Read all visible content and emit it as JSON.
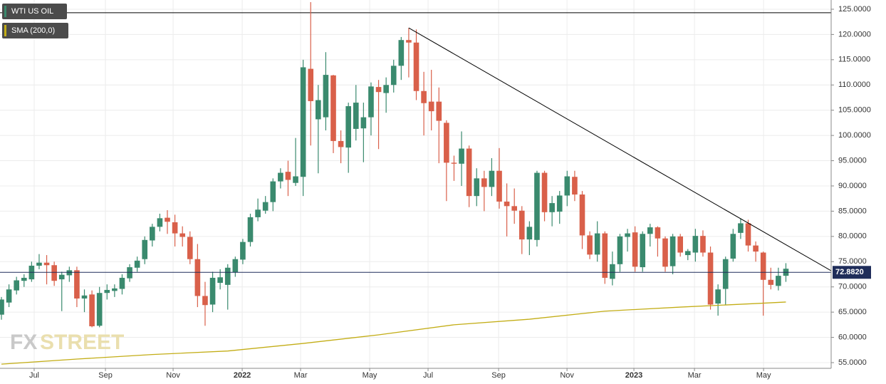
{
  "chart_data": {
    "type": "candlestick",
    "series": [
      {
        "name": "WTI US OIL",
        "type": "candlestick",
        "up_color": "#3a8a6e",
        "down_color": "#d9604a",
        "open": [
          64.5,
          66.9,
          69.3,
          71.2,
          71.5,
          74.2,
          74.8,
          74.3,
          71.5,
          72.3,
          73.3,
          67.7,
          68.5,
          62.3,
          68.8,
          69.2,
          69.6,
          71.7,
          73.8,
          75.5,
          79.2,
          81.9,
          83.7,
          82.8,
          80.6,
          79.9,
          75.5,
          68.2,
          66.5,
          70.8,
          70.4,
          72.9,
          75.4,
          78.9,
          83.8,
          85.1,
          86.8,
          90.9,
          92.8,
          90.6,
          91.8,
          113.2,
          103.2,
          103.6,
          111.9,
          98.9,
          97.6,
          101.3,
          101.4,
          103.6,
          109.6,
          108.4,
          110,
          113.8,
          118.9,
          118.4,
          108.8,
          106.7,
          106.7,
          102.5,
          94.6,
          94.4,
          97.4,
          88,
          91.5,
          89.8,
          93,
          86.9,
          86,
          85.1,
          79.4,
          79.3,
          92.6,
          84.8,
          84.9,
          88.1,
          91.8,
          88.3,
          80.2,
          76.4,
          80.6,
          71.6,
          74.5,
          79.9,
          80.8,
          73.9,
          80.5,
          81.8,
          79.6,
          74.1,
          80,
          76.3,
          76.8,
          80.1,
          76.8,
          66.7,
          69.6,
          75.6,
          80.7,
          82.6,
          78.2,
          76.8,
          71.4,
          70.2,
          72.2
        ],
        "high": [
          68,
          70.5,
          72,
          72.5,
          75,
          76.5,
          76.3,
          75,
          73,
          74,
          74,
          69.5,
          69.3,
          70,
          70.5,
          70.5,
          72.5,
          74.5,
          76,
          80,
          82.5,
          84.5,
          85.2,
          84.3,
          82,
          81,
          78.5,
          71,
          73,
          73.5,
          74.5,
          76,
          79.5,
          84.5,
          87.5,
          88,
          91.5,
          93.5,
          95,
          99.5,
          115,
          126.4,
          110,
          116.5,
          112,
          101,
          106.5,
          110,
          106.5,
          110.5,
          111,
          111.5,
          115,
          119.5,
          121.3,
          121,
          112.6,
          113,
          109.5,
          103,
          96,
          100.8,
          98,
          93.5,
          93,
          95.5,
          97.5,
          90.5,
          89.5,
          86,
          83,
          93,
          93,
          88,
          89,
          93,
          93,
          89,
          81,
          83,
          81,
          77,
          80.5,
          81.5,
          82,
          81,
          82.5,
          82,
          80,
          80.5,
          80.5,
          77.5,
          81.5,
          81.2,
          78,
          70.5,
          76,
          81.5,
          83.5,
          83.3,
          79,
          77,
          73.8,
          73.8,
          74.7
        ],
        "low": [
          63.5,
          66,
          68.5,
          70,
          71,
          73.5,
          70.5,
          70.2,
          65.2,
          71,
          66,
          65,
          62,
          62,
          67.5,
          68,
          68.5,
          71,
          73,
          74.5,
          78,
          81,
          80.5,
          78,
          78,
          74.5,
          66,
          62.3,
          65,
          69.5,
          65.5,
          72,
          74.5,
          78,
          83,
          84.5,
          85,
          89.5,
          88,
          90,
          88,
          98,
          92.5,
          101,
          96.5,
          94.5,
          92.6,
          99,
          94.7,
          100,
          97.3,
          104.5,
          108.5,
          111,
          111.5,
          107,
          100,
          101,
          94.5,
          87,
          91,
          90,
          85.8,
          86,
          85,
          88,
          85.5,
          80,
          82.5,
          76.5,
          76.3,
          78,
          83,
          82,
          82.5,
          86,
          87,
          77.5,
          75.5,
          75,
          70.6,
          70.3,
          73,
          77,
          73,
          73,
          78,
          76,
          73,
          72.5,
          76,
          75.3,
          75,
          76,
          65.5,
          64.3,
          66.5,
          75,
          79.5,
          77,
          75,
          64.3,
          69.5,
          69.3,
          71
        ],
        "close": [
          67.5,
          69.5,
          71.3,
          71.8,
          74.2,
          74.8,
          74.3,
          71.2,
          72.4,
          73.3,
          67.7,
          68.3,
          62.2,
          68.8,
          69.4,
          69.7,
          71.8,
          73.9,
          75.2,
          79.3,
          81.9,
          83.6,
          82.9,
          80.6,
          79.9,
          75.5,
          68.2,
          66.4,
          71.8,
          71.9,
          73.8,
          75.5,
          78.9,
          83.8,
          85.3,
          86.8,
          90.9,
          92.6,
          91.2,
          91.9,
          113.5,
          106.8,
          107,
          112,
          98.9,
          97.7,
          105.8,
          106.5,
          103.6,
          109.7,
          108.6,
          110,
          113.8,
          118.9,
          118.4,
          108.8,
          106.4,
          104.8,
          102.9,
          94.6,
          94.4,
          97.4,
          88,
          91.5,
          89.8,
          93,
          86.9,
          86,
          85.1,
          79.4,
          81.9,
          92.6,
          84.8,
          86.6,
          88.1,
          91.9,
          88.3,
          80.2,
          76.4,
          80.6,
          71.8,
          74.5,
          80,
          80.6,
          74,
          80.5,
          81.8,
          79.6,
          74,
          80,
          76.8,
          77.1,
          80.1,
          76.8,
          66.5,
          69.5,
          75.5,
          80.5,
          82.6,
          78.2,
          77,
          71.4,
          70.4,
          72.2,
          73.6
        ]
      },
      {
        "name": "SMA (200,0)",
        "type": "line",
        "color": "#c3ad16",
        "x": [
          0,
          10,
          20,
          30,
          40,
          50,
          60,
          70,
          80,
          90,
          100,
          104
        ],
        "values": [
          54.7,
          55.7,
          56.6,
          57.3,
          58.8,
          60.5,
          62.5,
          63.6,
          65.2,
          66.0,
          66.7,
          67.0
        ]
      }
    ],
    "trendline": {
      "color": "#000000",
      "x": [
        54,
        110
      ],
      "values": [
        121.3,
        73.2
      ]
    },
    "hline": {
      "color": "#000000",
      "value": 124.3
    },
    "last_price": {
      "value": 72.882,
      "label": "72.8820",
      "color": "#1f2d5a"
    },
    "xlim": [
      -0.19,
      110
    ],
    "xticks": [
      {
        "value": 4.34,
        "label": "Jul"
      },
      {
        "value": 13.79,
        "label": "Sep"
      },
      {
        "value": 22.76,
        "label": "Nov"
      },
      {
        "value": 31.92,
        "label": "2022"
      },
      {
        "value": 39.66,
        "label": "Mar"
      },
      {
        "value": 48.82,
        "label": "May"
      },
      {
        "value": 56.56,
        "label": "Jul"
      },
      {
        "value": 65.91,
        "label": "Sep"
      },
      {
        "value": 74.98,
        "label": "Nov"
      },
      {
        "value": 83.85,
        "label": "2023"
      },
      {
        "value": 91.88,
        "label": "Mar"
      },
      {
        "value": 101.04,
        "label": "May"
      }
    ],
    "ylim": [
      53.87,
      126.83
    ],
    "yticks": [
      {
        "value": 55,
        "label": "55.0000"
      },
      {
        "value": 60,
        "label": "60.0000"
      },
      {
        "value": 65,
        "label": "65.0000"
      },
      {
        "value": 70,
        "label": "70.0000"
      },
      {
        "value": 75,
        "label": "75.0000"
      },
      {
        "value": 80,
        "label": "80.0000"
      },
      {
        "value": 85,
        "label": "85.0000"
      },
      {
        "value": 90,
        "label": "90.0000"
      },
      {
        "value": 95,
        "label": "95.0000"
      },
      {
        "value": 100,
        "label": "100.0000"
      },
      {
        "value": 105,
        "label": "105.0000"
      },
      {
        "value": 110,
        "label": "110.0000"
      },
      {
        "value": 115,
        "label": "115.0000"
      },
      {
        "value": 120,
        "label": "120.0000"
      },
      {
        "value": 125,
        "label": "125.0000"
      }
    ],
    "grid": true,
    "watermark": [
      "FX",
      "STREET"
    ]
  }
}
